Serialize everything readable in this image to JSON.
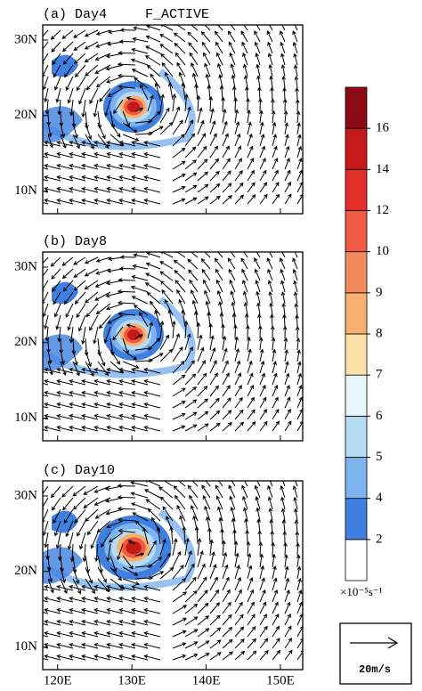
{
  "chart_data": {
    "type": "map",
    "xlim": [
      118,
      153
    ],
    "xticks": [
      {
        "value": 120,
        "label": "120E"
      },
      {
        "value": 130,
        "label": "130E"
      },
      {
        "value": 140,
        "label": "140E"
      },
      {
        "value": 150,
        "label": "150E"
      }
    ],
    "ylim": [
      7,
      32
    ],
    "yticks": [
      {
        "value": 10,
        "label": "10N"
      },
      {
        "value": 20,
        "label": "20N"
      },
      {
        "value": 30,
        "label": "30N"
      }
    ],
    "panels": [
      {
        "title": "(a) Day4",
        "subtitle": "F_ACTIVE"
      },
      {
        "title": "(b) Day8"
      },
      {
        "title": "(c) Day10"
      }
    ],
    "colorbar": {
      "levels": [
        2,
        4,
        5,
        6,
        7,
        8,
        9,
        10,
        12,
        14,
        16
      ],
      "colors": [
        "#ffffff",
        "#3f7fe0",
        "#7db3ef",
        "#b6dcf5",
        "#e8f7fb",
        "#fde0a8",
        "#f8b070",
        "#f28a5a",
        "#ee5b45",
        "#e3302a",
        "#c41a1a",
        "#8c0a14"
      ],
      "unit_label": "×10⁻⁵s⁻¹"
    },
    "reference_vector": "20m/s"
  }
}
